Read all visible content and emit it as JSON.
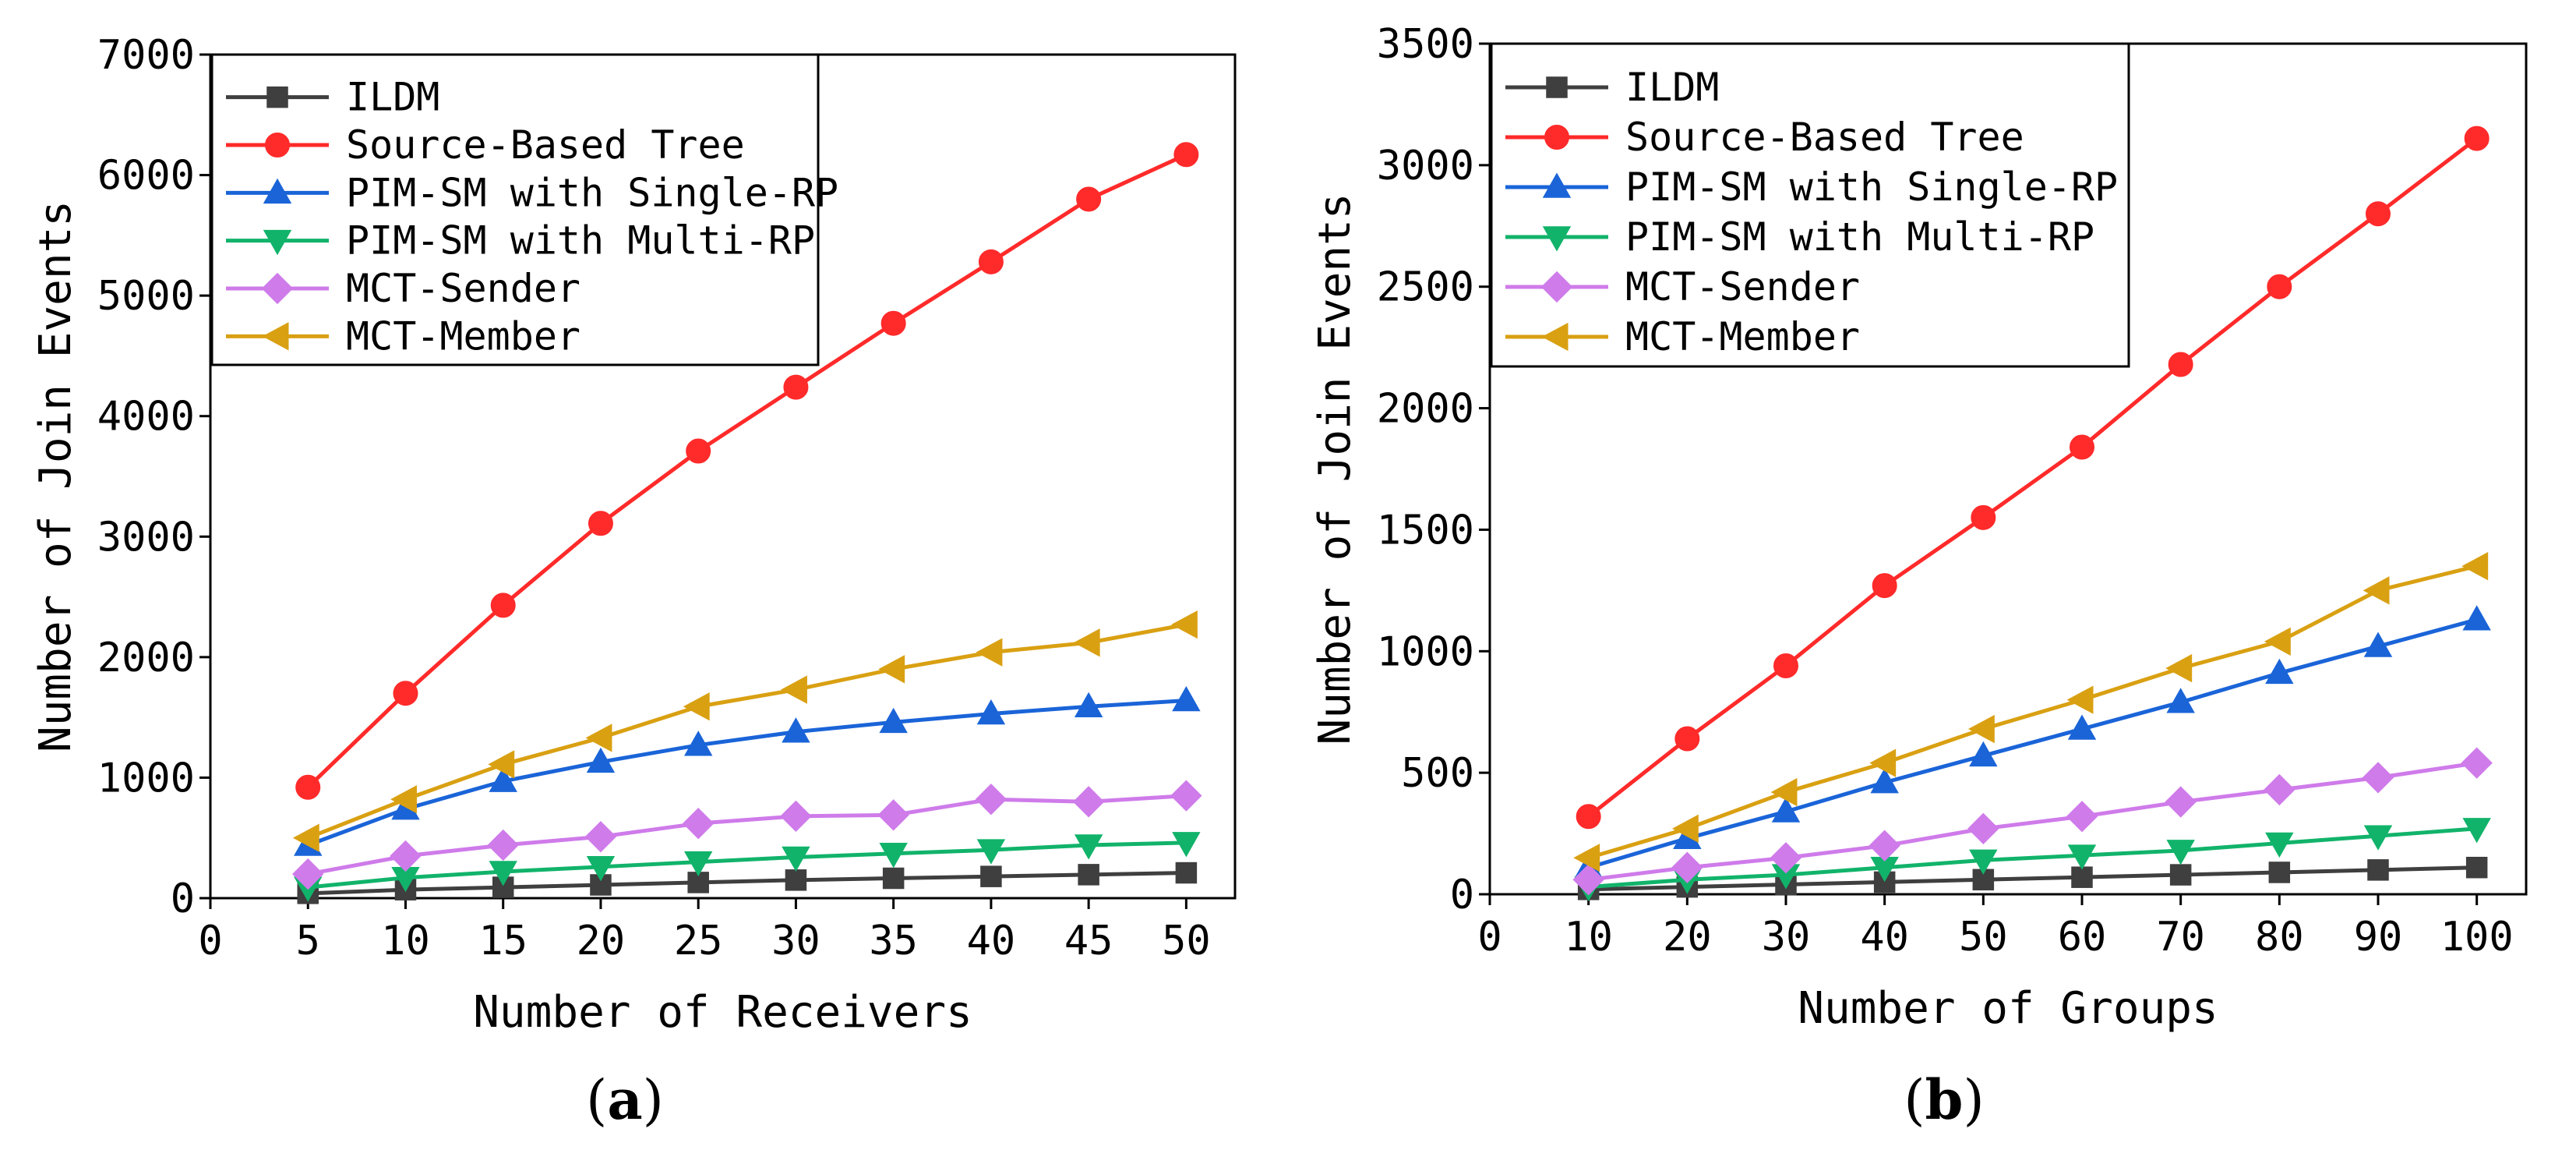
{
  "chart_data": [
    {
      "type": "line",
      "panel": "a",
      "caption": "(a)",
      "caption_open": "(",
      "caption_letter": "a",
      "caption_close": ")",
      "xlabel": "Number of Receivers",
      "ylabel": "Number of Join Events",
      "xlim": [
        0,
        52.5
      ],
      "ylim": [
        0,
        7000
      ],
      "xticks": [
        0,
        5,
        10,
        15,
        20,
        25,
        30,
        35,
        40,
        45,
        50
      ],
      "yticks": [
        0,
        1000,
        2000,
        3000,
        4000,
        5000,
        6000,
        7000
      ],
      "legend_position": "top-left",
      "x": [
        5,
        10,
        15,
        20,
        25,
        30,
        35,
        40,
        45,
        50
      ],
      "series": [
        {
          "name": "ILDM",
          "color": "#3f3f3f",
          "marker": "square",
          "values": [
            40,
            70,
            90,
            110,
            130,
            150,
            165,
            180,
            195,
            210
          ]
        },
        {
          "name": "Source-Based Tree",
          "color": "#ff2a2a",
          "marker": "circle",
          "values": [
            920,
            1700,
            2430,
            3110,
            3710,
            4240,
            4770,
            5280,
            5800,
            6170
          ]
        },
        {
          "name": "PIM-SM with Single-RP",
          "color": "#1a64d8",
          "marker": "triangle-up",
          "values": [
            440,
            740,
            970,
            1130,
            1270,
            1380,
            1460,
            1530,
            1590,
            1640
          ]
        },
        {
          "name": "PIM-SM with Multi-RP",
          "color": "#11b36a",
          "marker": "triangle-down",
          "values": [
            90,
            170,
            220,
            260,
            300,
            340,
            370,
            400,
            440,
            460
          ]
        },
        {
          "name": "MCT-Sender",
          "color": "#cf7bea",
          "marker": "diamond",
          "values": [
            200,
            350,
            440,
            510,
            620,
            680,
            690,
            820,
            800,
            850
          ]
        },
        {
          "name": "MCT-Member",
          "color": "#d9a012",
          "marker": "triangle-left",
          "values": [
            500,
            820,
            1110,
            1330,
            1590,
            1730,
            1900,
            2040,
            2120,
            2270
          ]
        }
      ]
    },
    {
      "type": "line",
      "panel": "b",
      "caption": "(b)",
      "caption_open": "(",
      "caption_letter": "b",
      "caption_close": ")",
      "xlabel": "Number of Groups",
      "ylabel": "Number of Join Events",
      "xlim": [
        0,
        105
      ],
      "ylim": [
        0,
        3500
      ],
      "xticks": [
        0,
        10,
        20,
        30,
        40,
        50,
        60,
        70,
        80,
        90,
        100
      ],
      "yticks": [
        0,
        500,
        1000,
        1500,
        2000,
        2500,
        3000,
        3500
      ],
      "legend_position": "top-left",
      "x": [
        10,
        20,
        30,
        40,
        50,
        60,
        70,
        80,
        90,
        100
      ],
      "series": [
        {
          "name": "ILDM",
          "color": "#3f3f3f",
          "marker": "square",
          "values": [
            20,
            30,
            40,
            50,
            60,
            70,
            80,
            90,
            100,
            110
          ]
        },
        {
          "name": "Source-Based Tree",
          "color": "#ff2a2a",
          "marker": "circle",
          "values": [
            320,
            640,
            940,
            1270,
            1550,
            1840,
            2180,
            2500,
            2800,
            3110
          ]
        },
        {
          "name": "PIM-SM with Single-RP",
          "color": "#1a64d8",
          "marker": "triangle-up",
          "values": [
            110,
            230,
            340,
            460,
            570,
            680,
            790,
            910,
            1020,
            1130
          ]
        },
        {
          "name": "PIM-SM with Multi-RP",
          "color": "#11b36a",
          "marker": "triangle-down",
          "values": [
            30,
            60,
            80,
            110,
            140,
            160,
            180,
            210,
            240,
            270
          ]
        },
        {
          "name": "MCT-Sender",
          "color": "#cf7bea",
          "marker": "diamond",
          "values": [
            60,
            110,
            150,
            200,
            270,
            320,
            380,
            430,
            480,
            540
          ]
        },
        {
          "name": "MCT-Member",
          "color": "#d9a012",
          "marker": "triangle-left",
          "values": [
            150,
            270,
            420,
            540,
            680,
            800,
            930,
            1040,
            1250,
            1350
          ]
        }
      ]
    }
  ]
}
